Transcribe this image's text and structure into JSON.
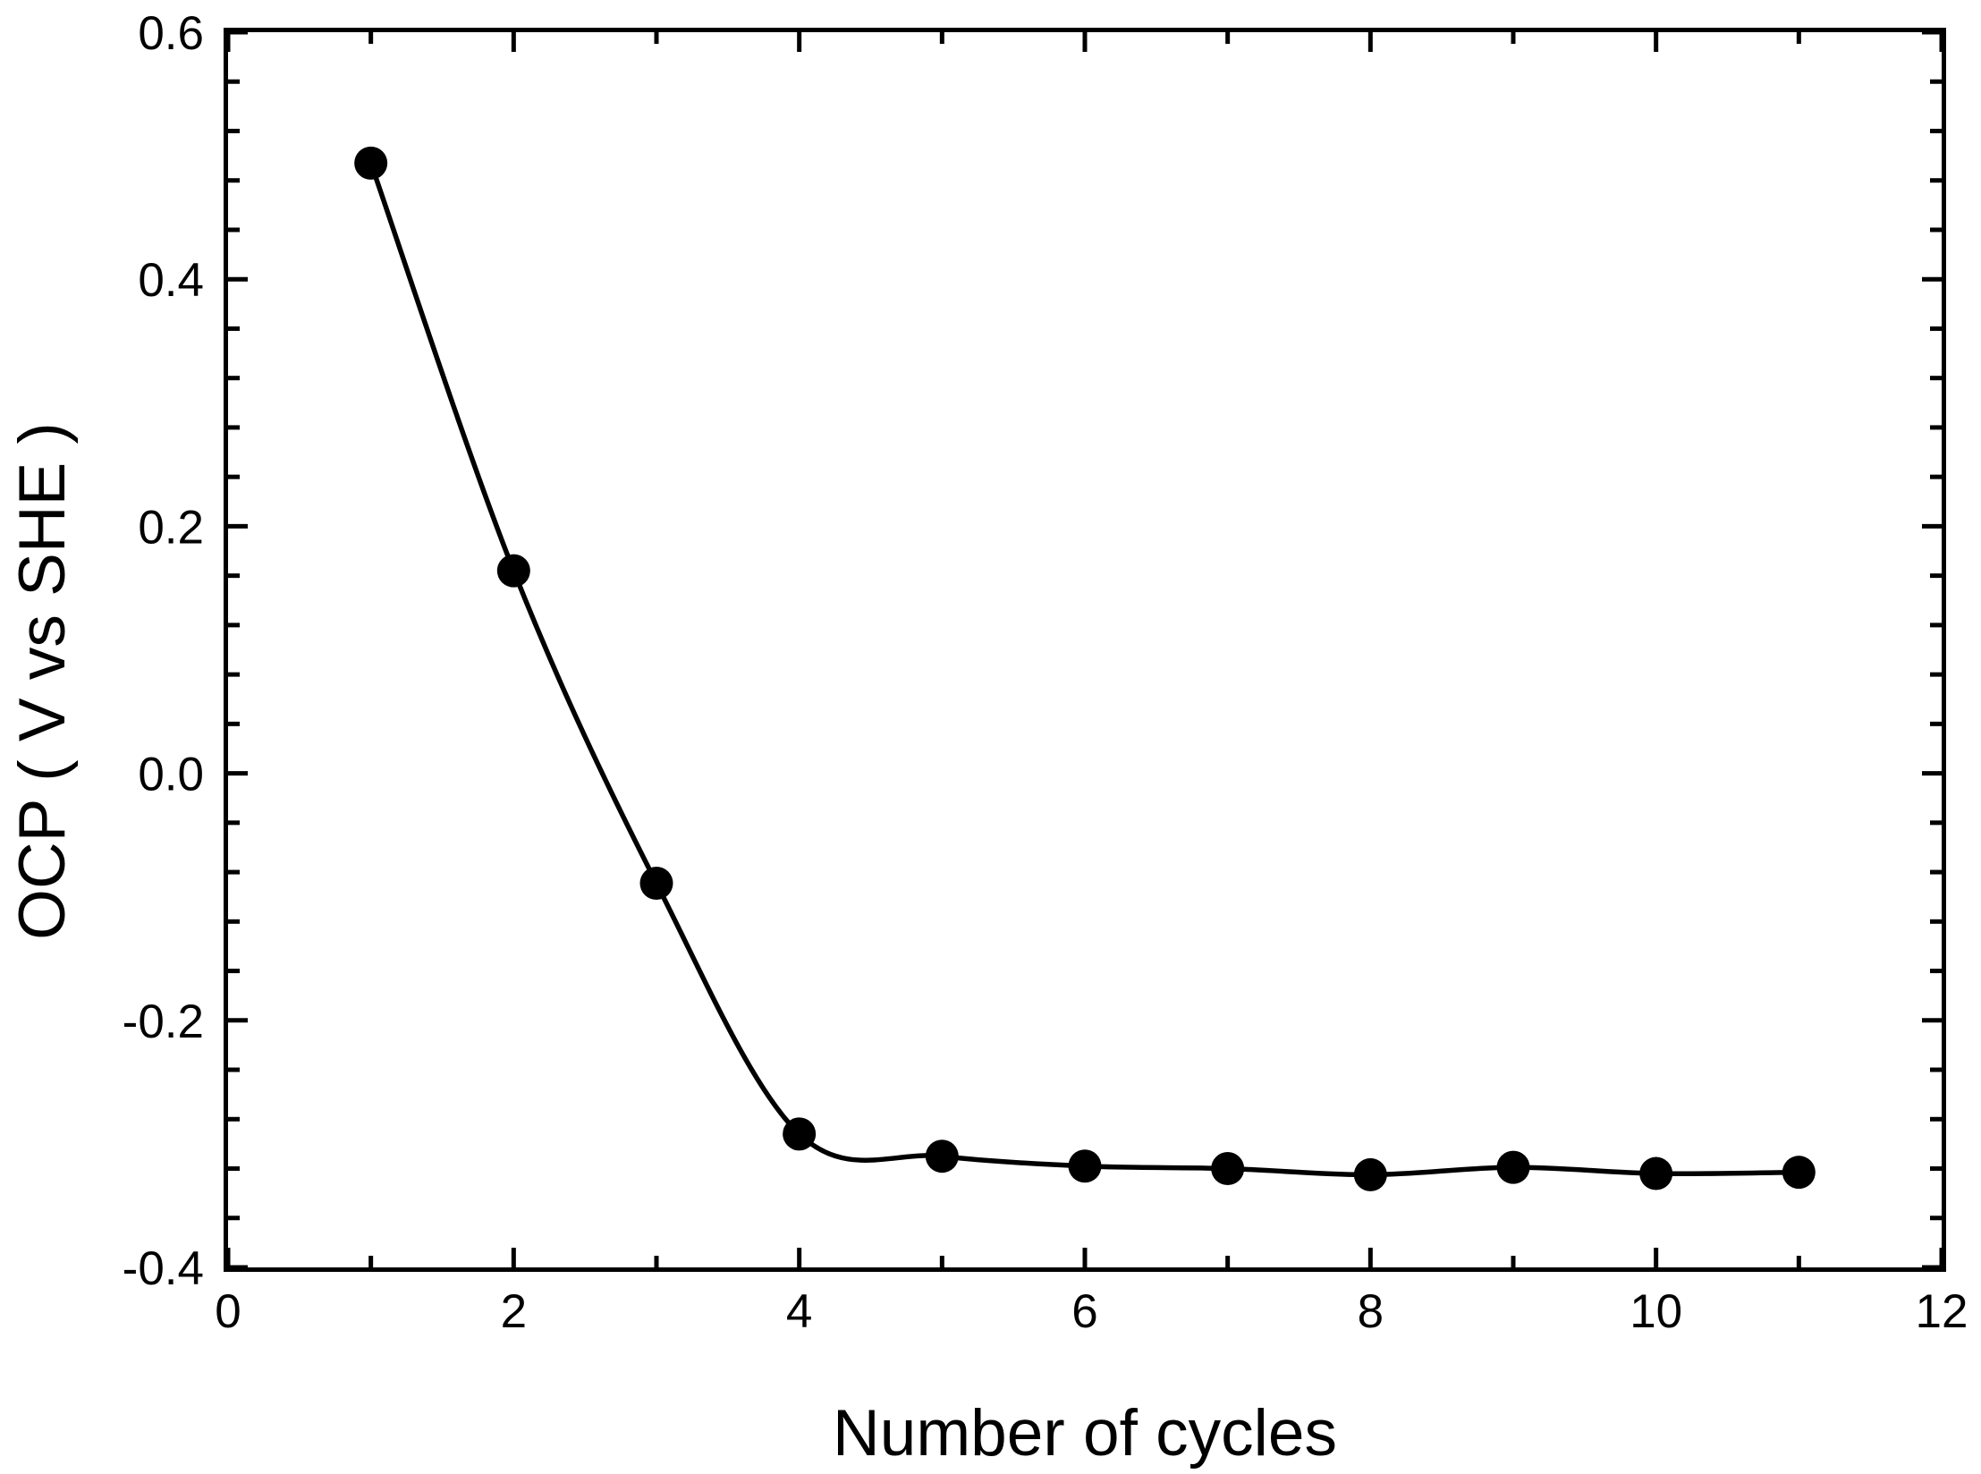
{
  "figure": {
    "background": "#ffffff",
    "foreground": "#000000"
  },
  "chart_data": {
    "type": "line",
    "title": "",
    "xlabel": "Number of cycles",
    "ylabel": "OCP ( V vs SHE )",
    "x": [
      1,
      2,
      3,
      4,
      5,
      6,
      7,
      8,
      9,
      10,
      11
    ],
    "series": [
      {
        "name": "OCP",
        "values": [
          0.494,
          0.164,
          -0.089,
          -0.292,
          -0.31,
          -0.318,
          -0.32,
          -0.325,
          -0.319,
          -0.324,
          -0.323
        ],
        "marker": "filled-circle",
        "color": "#000000",
        "line": "smooth-spline"
      }
    ],
    "xlim": [
      0,
      12
    ],
    "ylim": [
      -0.4,
      0.6
    ],
    "x_major_ticks": [
      0,
      2,
      4,
      6,
      8,
      10,
      12
    ],
    "x_tick_labels": [
      "0",
      "2",
      "4",
      "6",
      "8",
      "10",
      "12"
    ],
    "x_minor_ticks": [
      1,
      3,
      5,
      7,
      9,
      11
    ],
    "y_major_ticks": [
      0.6,
      0.4,
      0.2,
      0.0,
      -0.2,
      -0.4
    ],
    "y_tick_labels": [
      "0.6",
      "0.4",
      "0.2",
      "0.0",
      "-0.2",
      "-0.4"
    ],
    "y_minor_step": 0.04,
    "grid": false,
    "legend": "none",
    "axes_box": true,
    "ticks_direction": "in"
  }
}
